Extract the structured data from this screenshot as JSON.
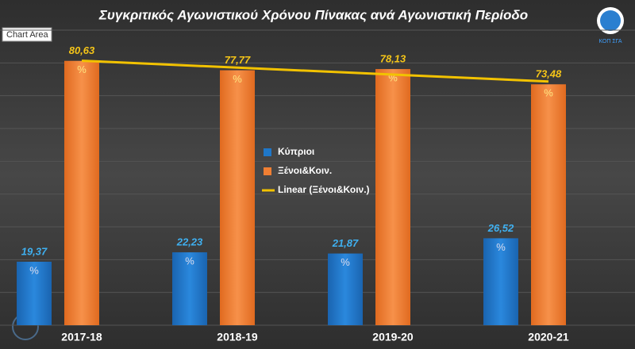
{
  "chart_data": {
    "type": "bar",
    "title": "Συγκριτικός Αγωνιστικού Χρόνου Πίνακας ανά Αγωνιστική Περίοδο",
    "tooltip": "Chart Area",
    "logo_text": "ΚΟΠ ΣΓΑ",
    "categories": [
      "2017-18",
      "2018-19",
      "2019-20",
      "2020-21"
    ],
    "value_label_unit": "%",
    "series": [
      {
        "name": "Κύπριοι",
        "color": "#1f77c8",
        "label_color": "#3fb0f0",
        "values": [
          19.37,
          22.23,
          21.87,
          26.52
        ],
        "value_labels": [
          "19,37",
          "22,23",
          "21,87",
          "26,52"
        ]
      },
      {
        "name": "Ξένοι&Κοιν.",
        "color": "#f07f33",
        "label_color": "#f5c518",
        "values": [
          80.63,
          77.77,
          78.13,
          73.48
        ],
        "value_labels": [
          "80,63",
          "77,77",
          "78,13",
          "73,48"
        ]
      },
      {
        "name": "Linear (Ξένοι&Κοιν.)",
        "type": "line",
        "color": "#f2c200",
        "values": [
          80.67,
          78.56,
          76.45,
          74.34
        ]
      }
    ],
    "ylim": [
      0,
      90
    ],
    "yticks": [
      0,
      10,
      20,
      30,
      40,
      50,
      60,
      70,
      80,
      90
    ],
    "grid": true,
    "y_tick_labels_visible": false
  }
}
